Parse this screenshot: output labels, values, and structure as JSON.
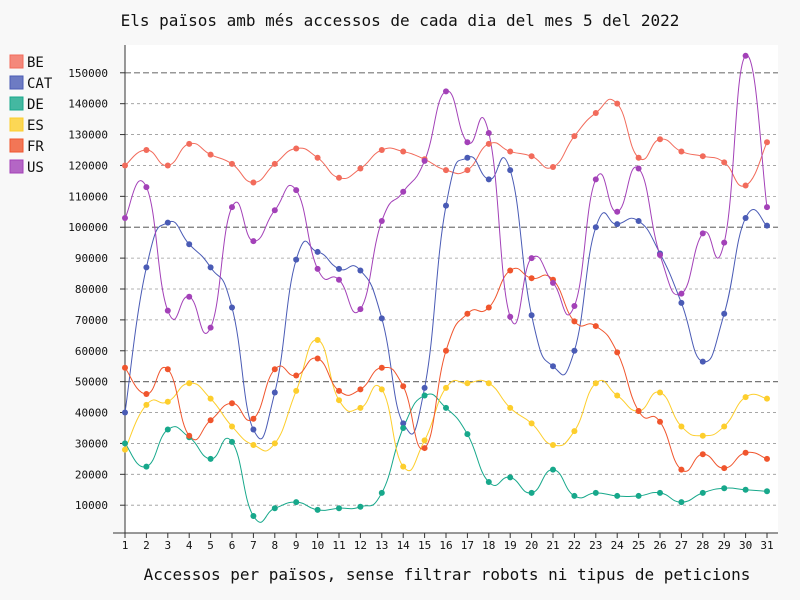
{
  "chart_data": {
    "type": "line",
    "title": "Els països amb més accessos de cada dia del mes 5 del 2022",
    "xlabel": "Accessos per països, sense filtrar robots ni tipus de peticions",
    "ylabel": "",
    "x": [
      1,
      2,
      3,
      4,
      5,
      6,
      7,
      8,
      9,
      10,
      11,
      12,
      13,
      14,
      15,
      16,
      17,
      18,
      19,
      20,
      21,
      22,
      23,
      24,
      25,
      26,
      27,
      28,
      29,
      30,
      31
    ],
    "x_tick_labels": [
      "1",
      "2",
      "3",
      "4",
      "5",
      "6",
      "7",
      "8",
      "9",
      "10",
      "11",
      "12",
      "13",
      "14",
      "15",
      "16",
      "17",
      "18",
      "19",
      "20",
      "21",
      "22",
      "23",
      "24",
      "25",
      "26",
      "27",
      "28",
      "29",
      "30",
      "31"
    ],
    "ylim": [
      1000,
      159000
    ],
    "y_ticks": [
      10000,
      20000,
      30000,
      40000,
      50000,
      60000,
      70000,
      80000,
      90000,
      100000,
      110000,
      120000,
      130000,
      140000,
      150000
    ],
    "y_tick_labels": [
      "10000",
      "20000",
      "30000",
      "40000",
      "50000",
      "60000",
      "70000",
      "80000",
      "90000",
      "100000",
      "110000",
      "120000",
      "130000",
      "140000",
      "150000"
    ],
    "major_gridlines": [
      50000,
      100000,
      150000
    ],
    "grid": true,
    "legend_position": "left",
    "series": [
      {
        "name": "BE",
        "color": "#f26b5b",
        "values": [
          120000,
          125000,
          120000,
          127000,
          123500,
          120500,
          114500,
          120500,
          125500,
          122500,
          116000,
          119000,
          125000,
          124500,
          122000,
          118500,
          118500,
          127000,
          124500,
          123000,
          119500,
          129500,
          137000,
          140000,
          122500,
          128500,
          124500,
          123000,
          121000,
          113500,
          127500
        ]
      },
      {
        "name": "CAT",
        "color": "#4a5bb5",
        "values": [
          40000,
          87000,
          101500,
          94500,
          87000,
          74000,
          34500,
          46500,
          89500,
          92000,
          86500,
          86000,
          70500,
          36500,
          48000,
          107000,
          122500,
          115500,
          118500,
          71500,
          55000,
          60000,
          100000,
          101000,
          102000,
          91500,
          75500,
          56500,
          72000,
          103000,
          100500
        ]
      },
      {
        "name": "DE",
        "color": "#17a88b",
        "values": [
          30000,
          22500,
          34500,
          32000,
          25000,
          30500,
          6500,
          9000,
          11000,
          8500,
          9000,
          9500,
          14000,
          35000,
          45500,
          41500,
          33000,
          17500,
          19000,
          14000,
          21500,
          13000,
          14000,
          13000,
          13000,
          14000,
          11000,
          14000,
          15500,
          15000,
          14500
        ]
      },
      {
        "name": "ES",
        "color": "#fdce2c",
        "values": [
          28000,
          42500,
          43500,
          49500,
          44500,
          35500,
          29500,
          30000,
          47000,
          63500,
          44000,
          41500,
          47500,
          22500,
          31000,
          48000,
          49500,
          49500,
          41500,
          36500,
          29500,
          34000,
          49500,
          45500,
          40500,
          46500,
          35500,
          32500,
          35500,
          45000,
          44500
        ]
      },
      {
        "name": "FR",
        "color": "#f0552d",
        "values": [
          54500,
          46000,
          54000,
          32500,
          37500,
          43000,
          38000,
          54000,
          52000,
          57500,
          47000,
          47500,
          54500,
          48500,
          28500,
          60000,
          72000,
          74000,
          86000,
          83500,
          83000,
          69500,
          68000,
          59500,
          40500,
          37000,
          21500,
          26500,
          22000,
          27000,
          25000
        ]
      },
      {
        "name": "US",
        "color": "#a341b8",
        "values": [
          103000,
          113000,
          73000,
          77500,
          67500,
          106500,
          95500,
          105500,
          112000,
          86500,
          83000,
          73500,
          102000,
          111500,
          121500,
          144000,
          127500,
          130500,
          71000,
          90000,
          82000,
          74500,
          115500,
          105000,
          119000,
          91000,
          78500,
          98000,
          95000,
          155500,
          106500
        ]
      }
    ]
  }
}
